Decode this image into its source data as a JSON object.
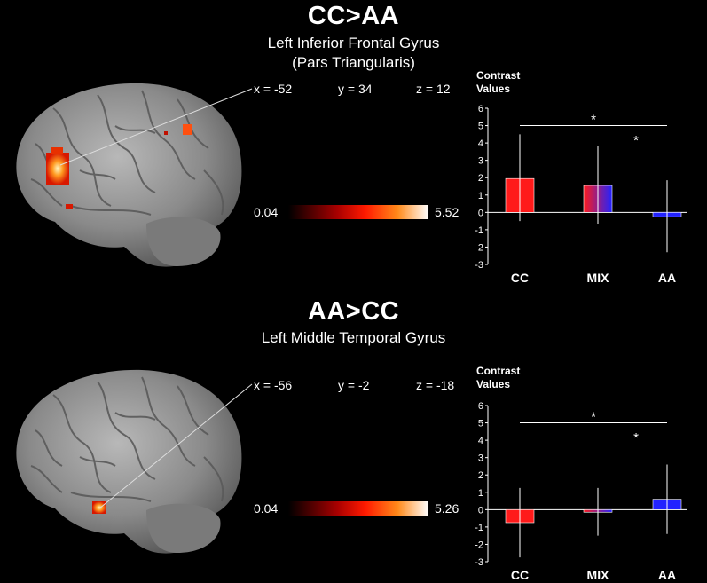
{
  "panels": [
    {
      "title": "CC>AA",
      "subtitle_lines": [
        "Left Inferior Frontal Gyrus",
        "(Pars Triangularis)"
      ],
      "coords": {
        "x": "x = -52",
        "y": "y = 34",
        "z": "z = 12"
      },
      "scale": {
        "min": "0.04",
        "max": "5.52"
      }
    },
    {
      "title": "AA>CC",
      "subtitle_lines": [
        "Left Middle Temporal Gyrus"
      ],
      "coords": {
        "x": "x = -56",
        "y": "y = -2",
        "z": "z = -18"
      },
      "scale": {
        "min": "0.04",
        "max": "5.26"
      }
    }
  ],
  "colors": {
    "cc": "#ff1a1a",
    "mix_start": "#ff1a1a",
    "mix_end": "#2222ff",
    "aa": "#2222ff",
    "axis": "#ffffff"
  },
  "chart_data": [
    {
      "type": "bar",
      "ylabel": "Contrast\nValues",
      "categories": [
        "CC",
        "MIX",
        "AA"
      ],
      "values": [
        1.95,
        1.55,
        -0.25
      ],
      "error_high": [
        4.5,
        3.8,
        1.85
      ],
      "error_low": [
        -0.5,
        -0.65,
        -2.3
      ],
      "ylim": [
        -3,
        6
      ],
      "yticks": [
        -3,
        -2,
        -1,
        0,
        1,
        2,
        3,
        4,
        5,
        6
      ],
      "annotations": [
        {
          "text": "*",
          "from": "CC",
          "to": "AA",
          "level": 5
        },
        {
          "text": "*",
          "from": "MIX",
          "to": "AA",
          "level": 4.2
        }
      ],
      "grid": false,
      "legend": "none"
    },
    {
      "type": "bar",
      "ylabel": "Contrast\nValues",
      "categories": [
        "CC",
        "MIX",
        "AA"
      ],
      "values": [
        -0.75,
        -0.15,
        0.6
      ],
      "error_high": [
        1.25,
        1.25,
        2.6
      ],
      "error_low": [
        -2.75,
        -1.5,
        -1.4
      ],
      "ylim": [
        -3,
        6
      ],
      "yticks": [
        -3,
        -2,
        -1,
        0,
        1,
        2,
        3,
        4,
        5,
        6
      ],
      "annotations": [
        {
          "text": "*",
          "from": "CC",
          "to": "AA",
          "level": 5
        },
        {
          "text": "*",
          "from": "MIX",
          "to": "AA",
          "level": 4.2
        }
      ],
      "grid": false,
      "legend": "none"
    }
  ]
}
